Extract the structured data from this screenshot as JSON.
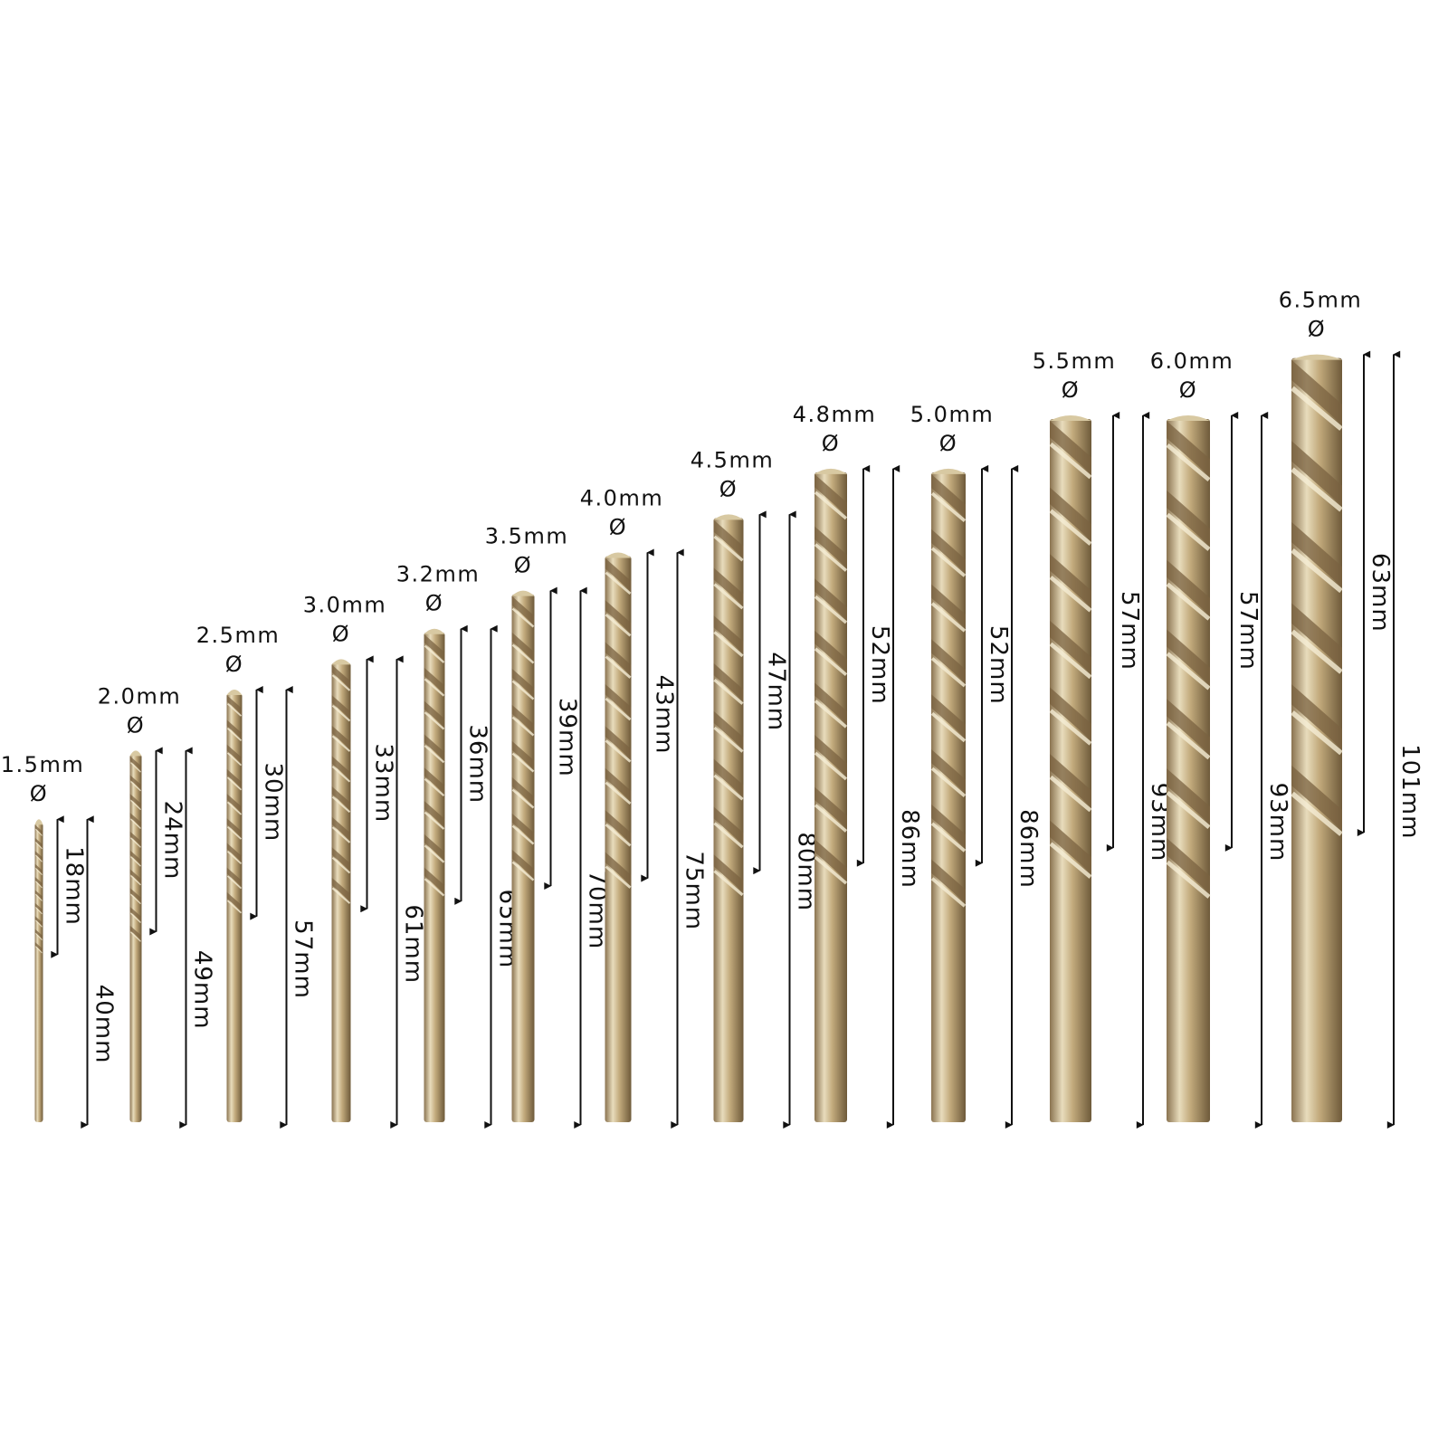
{
  "unit_suffix": "mm",
  "diameter_symbol": "Ø",
  "colors": {
    "metal_light": "#efe3c2",
    "metal_mid": "#c2aa7c",
    "metal_dark": "#7d6642",
    "arrow": "#111111",
    "background": "#ffffff"
  },
  "drills": [
    {
      "diameter": "1.5mm",
      "flute": "18mm",
      "total": "40mm",
      "flute_mm": 18,
      "total_mm": 40
    },
    {
      "diameter": "2.0mm",
      "flute": "24mm",
      "total": "49mm",
      "flute_mm": 24,
      "total_mm": 49
    },
    {
      "diameter": "2.5mm",
      "flute": "30mm",
      "total": "57mm",
      "flute_mm": 30,
      "total_mm": 57
    },
    {
      "diameter": "3.0mm",
      "flute": "33mm",
      "total": "61mm",
      "flute_mm": 33,
      "total_mm": 61
    },
    {
      "diameter": "3.2mm",
      "flute": "36mm",
      "total": "65mm",
      "flute_mm": 36,
      "total_mm": 65
    },
    {
      "diameter": "3.5mm",
      "flute": "39mm",
      "total": "70mm",
      "flute_mm": 39,
      "total_mm": 70
    },
    {
      "diameter": "4.0mm",
      "flute": "43mm",
      "total": "75mm",
      "flute_mm": 43,
      "total_mm": 75
    },
    {
      "diameter": "4.5mm",
      "flute": "47mm",
      "total": "80mm",
      "flute_mm": 47,
      "total_mm": 80
    },
    {
      "diameter": "4.8mm",
      "flute": "52mm",
      "total": "86mm",
      "flute_mm": 52,
      "total_mm": 86
    },
    {
      "diameter": "5.0mm",
      "flute": "52mm",
      "total": "86mm",
      "flute_mm": 52,
      "total_mm": 86
    },
    {
      "diameter": "5.5mm",
      "flute": "57mm",
      "total": "93mm",
      "flute_mm": 57,
      "total_mm": 93
    },
    {
      "diameter": "6.0mm",
      "flute": "57mm",
      "total": "93mm",
      "flute_mm": 57,
      "total_mm": 93
    },
    {
      "diameter": "6.5mm",
      "flute": "63mm",
      "total": "101mm",
      "flute_mm": 63,
      "total_mm": 101
    }
  ]
}
